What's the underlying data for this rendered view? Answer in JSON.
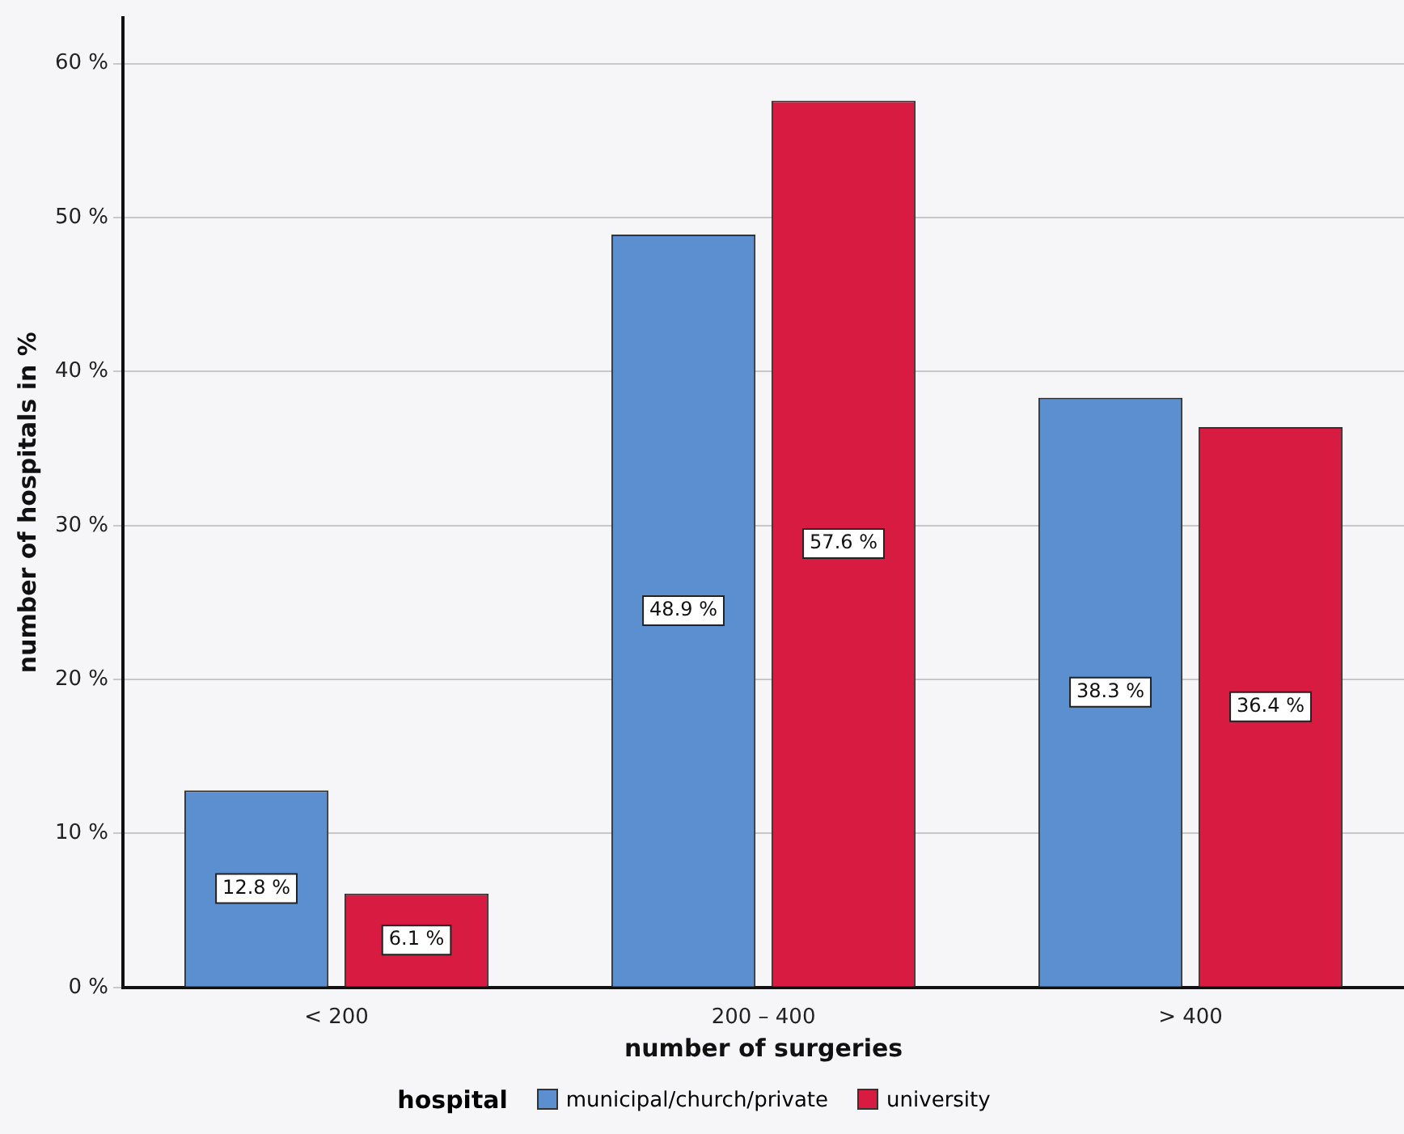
{
  "chart_data": {
    "type": "bar",
    "xlabel": "number of surgeries",
    "ylabel": "number of hospitals in %",
    "legend_title": "hospital",
    "legend": "bottom",
    "categories": [
      "< 200",
      "200 – 400",
      "> 400"
    ],
    "series": [
      {
        "name": "municipal/church/private",
        "color": "#5b8fd0",
        "values": [
          12.8,
          48.9,
          38.3
        ],
        "value_labels": [
          "12.8 %",
          "48.9 %",
          "38.3 %"
        ]
      },
      {
        "name": "university",
        "color": "#d81b40",
        "values": [
          6.1,
          57.6,
          36.4
        ],
        "value_labels": [
          "6.1 %",
          "57.6 %",
          "36.4 %"
        ]
      }
    ],
    "ylim": [
      0,
      63
    ],
    "yticks": [
      {
        "value": 0,
        "label": "0 %"
      },
      {
        "value": 10,
        "label": "10 %"
      },
      {
        "value": 20,
        "label": "20 %"
      },
      {
        "value": 30,
        "label": "30 %"
      },
      {
        "value": 40,
        "label": "40 %"
      },
      {
        "value": 50,
        "label": "50 %"
      },
      {
        "value": 60,
        "label": "60 %"
      }
    ],
    "grid": "y"
  }
}
